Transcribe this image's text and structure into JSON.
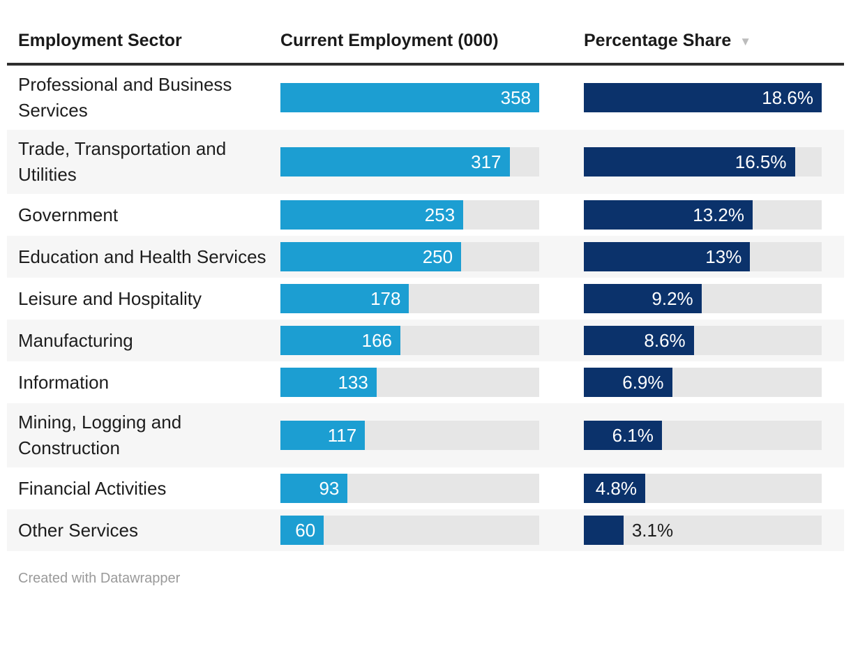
{
  "chart_data": {
    "type": "table",
    "title": "",
    "columns": [
      "Employment Sector",
      "Current Employment (000)",
      "Percentage Share"
    ],
    "categories": [
      "Professional and Business Services",
      "Trade, Transportation and Utilities",
      "Government",
      "Education and Health Services",
      "Leisure and Hospitality",
      "Manufacturing",
      "Information",
      "Mining, Logging and Construction",
      "Financial Activities",
      "Other Services"
    ],
    "series": [
      {
        "name": "Current Employment (000)",
        "values": [
          358,
          317,
          253,
          250,
          178,
          166,
          133,
          117,
          93,
          60
        ],
        "axis_max": 358,
        "bar_color": "#1c9ed2"
      },
      {
        "name": "Percentage Share",
        "values": [
          18.6,
          16.5,
          13.2,
          13,
          9.2,
          8.6,
          6.9,
          6.1,
          4.8,
          3.1
        ],
        "axis_max": 18.6,
        "bar_color": "#0b326b"
      }
    ],
    "sort": {
      "column": "Percentage Share",
      "direction": "desc"
    },
    "legend_position": "none",
    "grid": false
  },
  "header": {
    "sector": "Employment Sector",
    "employment": "Current Employment (000)",
    "share": "Percentage Share",
    "sort_icon": "▼"
  },
  "scales": {
    "employment_max": 358,
    "share_max": 18.6
  },
  "rows": [
    {
      "sector": "Professional and Business Services",
      "employment_value": 358,
      "employment_label": "358",
      "employment_inside": true,
      "share_value": 18.6,
      "share_label": "18.6%",
      "share_inside": true
    },
    {
      "sector": "Trade, Transportation and Utilities",
      "employment_value": 317,
      "employment_label": "317",
      "employment_inside": true,
      "share_value": 16.5,
      "share_label": "16.5%",
      "share_inside": true
    },
    {
      "sector": "Government",
      "employment_value": 253,
      "employment_label": "253",
      "employment_inside": true,
      "share_value": 13.2,
      "share_label": "13.2%",
      "share_inside": true
    },
    {
      "sector": "Education and Health Services",
      "employment_value": 250,
      "employment_label": "250",
      "employment_inside": true,
      "share_value": 13,
      "share_label": "13%",
      "share_inside": true
    },
    {
      "sector": "Leisure and Hospitality",
      "employment_value": 178,
      "employment_label": "178",
      "employment_inside": true,
      "share_value": 9.2,
      "share_label": "9.2%",
      "share_inside": true
    },
    {
      "sector": "Manufacturing",
      "employment_value": 166,
      "employment_label": "166",
      "employment_inside": true,
      "share_value": 8.6,
      "share_label": "8.6%",
      "share_inside": true
    },
    {
      "sector": "Information",
      "employment_value": 133,
      "employment_label": "133",
      "employment_inside": true,
      "share_value": 6.9,
      "share_label": "6.9%",
      "share_inside": true
    },
    {
      "sector": "Mining, Logging and Construction",
      "employment_value": 117,
      "employment_label": "117",
      "employment_inside": true,
      "share_value": 6.1,
      "share_label": "6.1%",
      "share_inside": true
    },
    {
      "sector": "Financial Activities",
      "employment_value": 93,
      "employment_label": "93",
      "employment_inside": true,
      "share_value": 4.8,
      "share_label": "4.8%",
      "share_inside": true
    },
    {
      "sector": "Other Services",
      "employment_value": 60,
      "employment_label": "60",
      "employment_inside": true,
      "share_value": 3.1,
      "share_label": "3.1%",
      "share_inside": false
    }
  ],
  "colors": {
    "employment_bar": "#1c9ed2",
    "share_bar": "#0b326b",
    "track": "#e6e6e6",
    "stripe": "#f6f6f6",
    "header_rule": "#2e2e2e",
    "text": "#1d1d1d",
    "value_on_bar": "#ffffff",
    "sort_icon": "#bcbcbc",
    "footer_text": "#9a9a9a"
  },
  "footer": {
    "credit": "Created with Datawrapper"
  }
}
